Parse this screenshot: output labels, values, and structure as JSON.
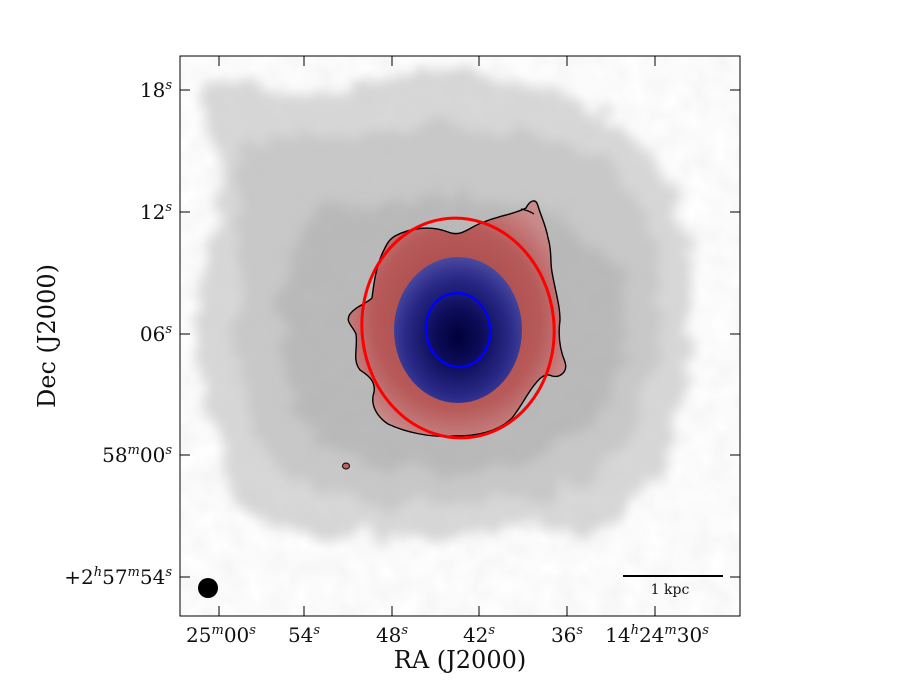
{
  "chart_data": {
    "type": "image",
    "xlabel": "RA (J2000)",
    "ylabel": "Dec (J2000)",
    "x_ticks": [
      {
        "text": "25",
        "sup": "m",
        "text2": "00",
        "sup2": "s"
      },
      {
        "text": "54",
        "sup": "s"
      },
      {
        "text": "48",
        "sup": "s"
      },
      {
        "text": "42",
        "sup": "s"
      },
      {
        "text": "36",
        "sup": "s"
      },
      {
        "text": "14",
        "sup": "h",
        "text2": "24",
        "sup2": "m",
        "text3": "30",
        "sup3": "s"
      }
    ],
    "y_ticks": [
      {
        "text": "18",
        "sup": "s"
      },
      {
        "text": "12",
        "sup": "s"
      },
      {
        "text": "06",
        "sup": "s"
      },
      {
        "text": "58",
        "sup": "m",
        "text2": "00",
        "sup2": "s"
      },
      {
        "text": "+2",
        "sup": "h",
        "text2": "57",
        "sup2": "m",
        "text3": "54",
        "sup3": "s"
      }
    ],
    "scale_bar": {
      "label": "1 kpc"
    },
    "beam": {
      "color": "#000000"
    },
    "colors": {
      "background_emission": "#9a9a9a",
      "red_region": "#b85050",
      "blue_region": "#2a2a8a",
      "red_ellipse": "#ff0000",
      "blue_ellipse": "#0000ff",
      "contour": "#000000"
    }
  }
}
